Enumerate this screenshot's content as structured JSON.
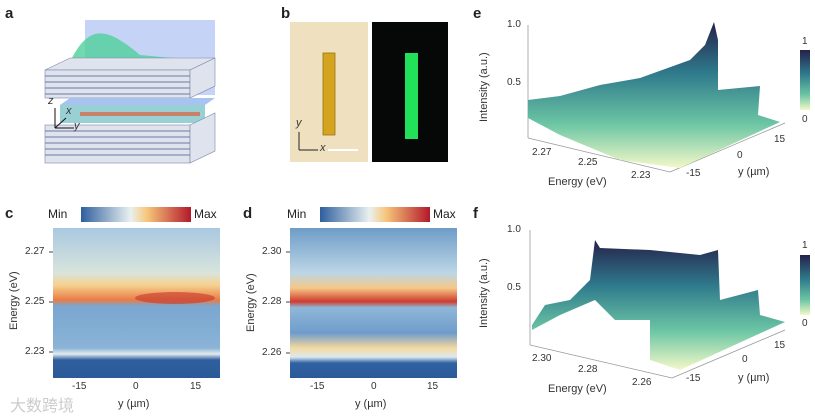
{
  "panels": {
    "a": "a",
    "b": "b",
    "c": "c",
    "d": "d",
    "e": "e",
    "f": "f"
  },
  "schematic": {
    "axis_z": "z",
    "axis_x": "x",
    "axis_y": "y"
  },
  "micrograph": {
    "axis_y": "y",
    "axis_x": "x"
  },
  "watermark": "大数跨境",
  "colors": {
    "heat_low": "#2f5f9e",
    "heat_mid": "#f3f1e4",
    "heat_high": "#b2182b",
    "surf_low": "#f3f8c8",
    "surf_high": "#25214a",
    "emission": "#22e05a",
    "crystal": "#d4a420"
  },
  "chart_data": [
    {
      "id": "c",
      "type": "heatmap",
      "xlabel": "y (µm)",
      "ylabel": "Energy (eV)",
      "xticks": [
        "-15",
        "0",
        "15"
      ],
      "yticks": [
        "2.27",
        "2.25",
        "2.23"
      ],
      "colorbar": {
        "min_label": "Min",
        "max_label": "Max"
      },
      "xlim": [
        -22,
        22
      ],
      "ylim": [
        2.22,
        2.28
      ],
      "features": [
        {
          "energy": 2.251,
          "description_value": "max"
        },
        {
          "energy": 2.232,
          "description_value": "mid"
        }
      ]
    },
    {
      "id": "d",
      "type": "heatmap",
      "xlabel": "y (µm)",
      "ylabel": "Energy (eV)",
      "xticks": [
        "-15",
        "0",
        "15"
      ],
      "yticks": [
        "2.30",
        "2.28",
        "2.26"
      ],
      "colorbar": {
        "min_label": "Min",
        "max_label": "Max"
      },
      "xlim": [
        -22,
        22
      ],
      "ylim": [
        2.25,
        2.31
      ],
      "features": [
        {
          "energy": 2.282,
          "description_value": "max"
        },
        {
          "energy": 2.262,
          "description_value": "mid"
        }
      ]
    },
    {
      "id": "e",
      "type": "surface",
      "xlabel": "Energy (eV)",
      "ylabel": "y (µm)",
      "zlabel": "Intensity (a.u.)",
      "xticks": [
        "2.27",
        "2.25",
        "2.23"
      ],
      "yticks": [
        "-15",
        "0",
        "15"
      ],
      "zticks": [
        "1.0",
        "0.5"
      ],
      "colorbar": {
        "max_label": "1",
        "min_label": "0"
      },
      "zlim": [
        0,
        1
      ],
      "peak": 1.0
    },
    {
      "id": "f",
      "type": "surface",
      "xlabel": "Energy (eV)",
      "ylabel": "y (µm)",
      "zlabel": "Intensity (a.u.)",
      "xticks": [
        "2.30",
        "2.28",
        "2.26"
      ],
      "yticks": [
        "-15",
        "0",
        "15"
      ],
      "zticks": [
        "1.0",
        "0.5"
      ],
      "colorbar": {
        "max_label": "1",
        "min_label": "0"
      },
      "zlim": [
        0,
        1
      ],
      "peak": 0.93
    }
  ]
}
